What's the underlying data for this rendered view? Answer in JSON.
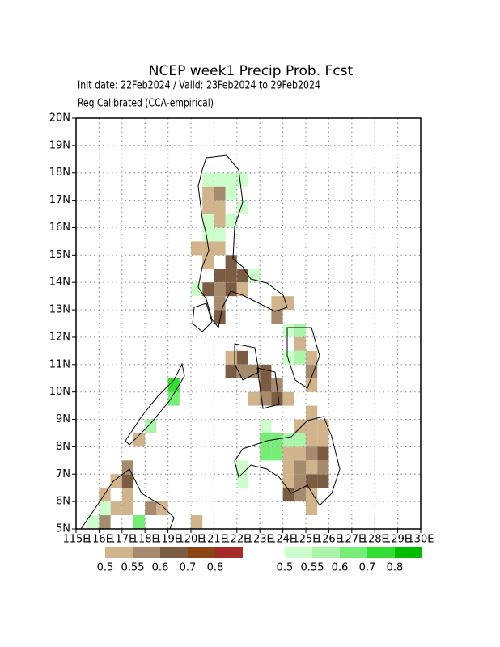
{
  "map": {
    "title": "NCEP week1 Precip Prob. Fcst",
    "subtitle": "Init date: 22Feb2024 / Valid: 23Feb2024 to 29Feb2024",
    "method": "Reg Calibrated (CCA-empirical)",
    "xlim": [
      115,
      130
    ],
    "ylim": [
      5,
      20
    ],
    "xticks": [
      {
        "value": 115,
        "label": "115E"
      },
      {
        "value": 116,
        "label": "116E"
      },
      {
        "value": 117,
        "label": "117E"
      },
      {
        "value": 118,
        "label": "118E"
      },
      {
        "value": 119,
        "label": "119E"
      },
      {
        "value": 120,
        "label": "120E"
      },
      {
        "value": 121,
        "label": "121E"
      },
      {
        "value": 122,
        "label": "122E"
      },
      {
        "value": 123,
        "label": "123E"
      },
      {
        "value": 124,
        "label": "124E"
      },
      {
        "value": 125,
        "label": "125E"
      },
      {
        "value": 126,
        "label": "126E"
      },
      {
        "value": 127,
        "label": "127E"
      },
      {
        "value": 128,
        "label": "128E"
      },
      {
        "value": 129,
        "label": "129E"
      },
      {
        "value": 130,
        "label": "130E"
      }
    ],
    "yticks": [
      {
        "value": 5,
        "label": "5N"
      },
      {
        "value": 6,
        "label": "6N"
      },
      {
        "value": 7,
        "label": "7N"
      },
      {
        "value": 8,
        "label": "8N"
      },
      {
        "value": 9,
        "label": "9N"
      },
      {
        "value": 10,
        "label": "10N"
      },
      {
        "value": 11,
        "label": "11N"
      },
      {
        "value": 12,
        "label": "12N"
      },
      {
        "value": 13,
        "label": "13N"
      },
      {
        "value": 14,
        "label": "14N"
      },
      {
        "value": 15,
        "label": "15N"
      },
      {
        "value": 16,
        "label": "16N"
      },
      {
        "value": 17,
        "label": "17N"
      },
      {
        "value": 18,
        "label": "18N"
      },
      {
        "value": 19,
        "label": "19N"
      },
      {
        "value": 20,
        "label": "20N"
      }
    ],
    "grid": true,
    "cell_size": 0.5,
    "legend_below": {
      "colors": [
        "#d2b48c",
        "#a58a6e",
        "#7b5b42",
        "#8b4513",
        "#a52a2a"
      ],
      "labels": [
        0.5,
        0.55,
        0.6,
        0.7,
        0.8
      ]
    },
    "legend_above": {
      "colors": [
        "#ccffcc",
        "#aaf5aa",
        "#77ec77",
        "#33dd33",
        "#00bb00"
      ],
      "labels": [
        0.5,
        0.55,
        0.6,
        0.7,
        0.8
      ]
    },
    "below_normal": [
      [
        120.5,
        17,
        0.5
      ],
      [
        121,
        17,
        0.55
      ],
      [
        120.5,
        16.5,
        0.5
      ],
      [
        121,
        16.5,
        0.5
      ],
      [
        121,
        16,
        0.5
      ],
      [
        120,
        15,
        0.5
      ],
      [
        120.5,
        15,
        0.5
      ],
      [
        121,
        15,
        0.5
      ],
      [
        120.5,
        14.5,
        0.5
      ],
      [
        121.5,
        14.5,
        0.6
      ],
      [
        121,
        14,
        0.6
      ],
      [
        121.5,
        14,
        0.6
      ],
      [
        120.5,
        13.5,
        0.6
      ],
      [
        121,
        13.5,
        0.55
      ],
      [
        121.5,
        13.5,
        0.6
      ],
      [
        121,
        13,
        0.55
      ],
      [
        121,
        12.5,
        0.6
      ],
      [
        122,
        14,
        0.6
      ],
      [
        122,
        13.5,
        0.5
      ],
      [
        123.5,
        13,
        0.5
      ],
      [
        124,
        13,
        0.5
      ],
      [
        123.5,
        12.5,
        0.55
      ],
      [
        121.5,
        11,
        0.5
      ],
      [
        122,
        11,
        0.6
      ],
      [
        121.5,
        10.5,
        0.6
      ],
      [
        122,
        10.5,
        0.55
      ],
      [
        122.5,
        10.5,
        0.55
      ],
      [
        123,
        10.5,
        0.6
      ],
      [
        123,
        10,
        0.6
      ],
      [
        123.5,
        10,
        0.55
      ],
      [
        122.5,
        9.5,
        0.5
      ],
      [
        123,
        9.5,
        0.55
      ],
      [
        123.5,
        9.5,
        0.6
      ],
      [
        124,
        9.5,
        0.5
      ],
      [
        124.5,
        11.5,
        0.5
      ],
      [
        125,
        11,
        0.5
      ],
      [
        125,
        10.5,
        0.55
      ],
      [
        125,
        10,
        0.5
      ],
      [
        125,
        9,
        0.5
      ],
      [
        124.5,
        8.5,
        0.5
      ],
      [
        125,
        8.5,
        0.5
      ],
      [
        125.5,
        8.5,
        0.5
      ],
      [
        125,
        8,
        0.5
      ],
      [
        125.5,
        8,
        0.5
      ],
      [
        124,
        7.5,
        0.5
      ],
      [
        124.5,
        7.5,
        0.5
      ],
      [
        125,
        7.5,
        0.55
      ],
      [
        125.5,
        7.5,
        0.6
      ],
      [
        124,
        7,
        0.5
      ],
      [
        124.5,
        7,
        0.55
      ],
      [
        125,
        7,
        0.5
      ],
      [
        125.5,
        7,
        0.55
      ],
      [
        124,
        6.5,
        0.5
      ],
      [
        124.5,
        6.5,
        0.55
      ],
      [
        125,
        6.5,
        0.6
      ],
      [
        125.5,
        6.5,
        0.6
      ],
      [
        124,
        6,
        0.6
      ],
      [
        124.5,
        6,
        0.55
      ],
      [
        125,
        6,
        0.5
      ],
      [
        125,
        5.5,
        0.5
      ],
      [
        117.5,
        8,
        0.5
      ],
      [
        116.5,
        6.5,
        0.5
      ],
      [
        117,
        6.5,
        0.6
      ],
      [
        117,
        7,
        0.55
      ],
      [
        117,
        6,
        0.5
      ],
      [
        116.5,
        5.5,
        0.5
      ],
      [
        117,
        5.5,
        0.5
      ],
      [
        118,
        5.5,
        0.55
      ],
      [
        118.5,
        5.5,
        0.5
      ],
      [
        116,
        6,
        0.5
      ],
      [
        116,
        5,
        0.55
      ],
      [
        120,
        5,
        0.5
      ]
    ],
    "above_normal": [
      [
        120.5,
        17.5,
        0.5
      ],
      [
        121,
        17.5,
        0.5
      ],
      [
        121.5,
        17.5,
        0.5
      ],
      [
        122,
        17.5,
        0.5
      ],
      [
        122,
        16.5,
        0.5
      ],
      [
        121.5,
        17,
        0.5
      ],
      [
        120.5,
        15.5,
        0.5
      ],
      [
        121,
        15.5,
        0.5
      ],
      [
        120.5,
        16,
        0.5
      ],
      [
        121.5,
        16,
        0.5
      ],
      [
        120,
        13.5,
        0.5
      ],
      [
        122.5,
        14,
        0.5
      ],
      [
        124,
        12,
        0.5
      ],
      [
        124.5,
        12,
        0.55
      ],
      [
        124,
        11,
        0.5
      ],
      [
        124.5,
        11,
        0.55
      ],
      [
        123,
        8.5,
        0.5
      ],
      [
        123.5,
        8,
        0.6
      ],
      [
        123,
        8,
        0.6
      ],
      [
        124,
        8,
        0.55
      ],
      [
        124.5,
        8,
        0.55
      ],
      [
        123,
        7.5,
        0.6
      ],
      [
        123.5,
        7.5,
        0.6
      ],
      [
        122,
        7,
        0.5
      ],
      [
        122,
        6.5,
        0.5
      ],
      [
        119,
        10,
        0.7
      ],
      [
        119,
        9.5,
        0.6
      ],
      [
        118,
        8.5,
        0.55
      ],
      [
        116,
        5.5,
        0.5
      ],
      [
        117.5,
        5,
        0.6
      ],
      [
        115.5,
        5,
        0.5
      ]
    ]
  }
}
